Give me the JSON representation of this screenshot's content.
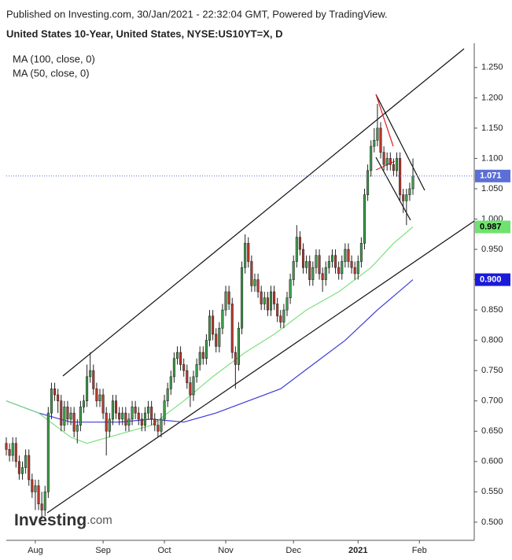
{
  "chart_data": {
    "type": "candlestick",
    "published": "Published on Investing.com, 30/Jan/2021 - 22:32:04 GMT, Powered by TradingView.",
    "title": "United States 10-Year, United States, NYSE:US10YT=X, D",
    "logo": [
      "Investing",
      ".com"
    ],
    "up_color": "#3fa34d",
    "down_color": "#c0392b",
    "open": [
      0.63,
      0.62,
      0.61,
      0.63,
      0.6,
      0.58,
      0.59,
      0.61,
      0.57,
      0.55,
      0.56,
      0.53,
      0.52,
      0.55,
      0.68,
      0.72,
      0.71,
      0.7,
      0.66,
      0.69,
      0.67,
      0.68,
      0.65,
      0.66,
      0.69,
      0.7,
      0.74,
      0.75,
      0.72,
      0.7,
      0.71,
      0.68,
      0.65,
      0.67,
      0.7,
      0.68,
      0.67,
      0.68,
      0.66,
      0.67,
      0.69,
      0.68,
      0.67,
      0.66,
      0.68,
      0.69,
      0.67,
      0.66,
      0.65,
      0.67,
      0.7,
      0.72,
      0.74,
      0.77,
      0.78,
      0.76,
      0.75,
      0.73,
      0.71,
      0.74,
      0.76,
      0.78,
      0.77,
      0.8,
      0.84,
      0.81,
      0.79,
      0.82,
      0.85,
      0.88,
      0.86,
      0.78,
      0.76,
      0.82,
      0.92,
      0.96,
      0.93,
      0.89,
      0.9,
      0.88,
      0.86,
      0.87,
      0.85,
      0.88,
      0.86,
      0.84,
      0.83,
      0.85,
      0.87,
      0.9,
      0.93,
      0.97,
      0.95,
      0.92,
      0.93,
      0.9,
      0.92,
      0.94,
      0.91,
      0.9,
      0.92,
      0.93,
      0.94,
      0.92,
      0.91,
      0.93,
      0.95,
      0.93,
      0.92,
      0.91,
      0.93,
      0.96,
      1.04,
      1.08,
      1.12,
      1.13,
      1.15,
      1.11,
      1.09,
      1.1,
      1.09,
      1.08,
      1.1,
      1.04,
      1.03,
      1.04,
      1.05
    ],
    "high": [
      0.64,
      0.63,
      0.64,
      0.64,
      0.61,
      0.6,
      0.62,
      0.62,
      0.58,
      0.57,
      0.57,
      0.55,
      0.56,
      0.69,
      0.73,
      0.73,
      0.72,
      0.71,
      0.7,
      0.7,
      0.69,
      0.69,
      0.67,
      0.7,
      0.71,
      0.76,
      0.78,
      0.76,
      0.73,
      0.72,
      0.72,
      0.69,
      0.68,
      0.71,
      0.71,
      0.69,
      0.69,
      0.69,
      0.68,
      0.7,
      0.7,
      0.69,
      0.68,
      0.69,
      0.7,
      0.7,
      0.68,
      0.67,
      0.68,
      0.71,
      0.73,
      0.75,
      0.78,
      0.79,
      0.79,
      0.77,
      0.76,
      0.74,
      0.75,
      0.77,
      0.79,
      0.79,
      0.81,
      0.85,
      0.85,
      0.82,
      0.83,
      0.86,
      0.89,
      0.89,
      0.87,
      0.79,
      0.83,
      0.93,
      0.975,
      0.97,
      0.94,
      0.91,
      0.91,
      0.89,
      0.88,
      0.88,
      0.89,
      0.89,
      0.87,
      0.85,
      0.86,
      0.88,
      0.91,
      0.94,
      0.99,
      0.98,
      0.96,
      0.94,
      0.94,
      0.93,
      0.95,
      0.95,
      0.92,
      0.93,
      0.94,
      0.95,
      0.95,
      0.93,
      0.94,
      0.96,
      0.96,
      0.94,
      0.93,
      0.94,
      0.97,
      1.05,
      1.09,
      1.13,
      1.15,
      1.19,
      1.16,
      1.12,
      1.11,
      1.11,
      1.1,
      1.11,
      1.11,
      1.05,
      1.05,
      1.06,
      1.1
    ],
    "low": [
      0.61,
      0.6,
      0.6,
      0.59,
      0.57,
      0.57,
      0.58,
      0.56,
      0.54,
      0.52,
      0.52,
      0.505,
      0.51,
      0.54,
      0.67,
      0.7,
      0.68,
      0.65,
      0.65,
      0.66,
      0.66,
      0.64,
      0.63,
      0.65,
      0.68,
      0.69,
      0.73,
      0.71,
      0.69,
      0.69,
      0.67,
      0.61,
      0.64,
      0.66,
      0.67,
      0.66,
      0.66,
      0.65,
      0.65,
      0.66,
      0.67,
      0.66,
      0.65,
      0.65,
      0.67,
      0.66,
      0.65,
      0.64,
      0.64,
      0.66,
      0.69,
      0.71,
      0.73,
      0.76,
      0.75,
      0.74,
      0.72,
      0.69,
      0.7,
      0.73,
      0.75,
      0.76,
      0.76,
      0.79,
      0.8,
      0.78,
      0.78,
      0.81,
      0.84,
      0.85,
      0.77,
      0.72,
      0.75,
      0.81,
      0.91,
      0.92,
      0.88,
      0.88,
      0.87,
      0.85,
      0.85,
      0.84,
      0.84,
      0.85,
      0.83,
      0.82,
      0.82,
      0.84,
      0.86,
      0.89,
      0.92,
      0.94,
      0.91,
      0.91,
      0.89,
      0.89,
      0.91,
      0.9,
      0.88,
      0.89,
      0.91,
      0.92,
      0.91,
      0.9,
      0.9,
      0.92,
      0.92,
      0.91,
      0.9,
      0.9,
      0.92,
      0.95,
      1.03,
      1.07,
      1.11,
      1.12,
      1.1,
      1.08,
      1.08,
      1.08,
      1.07,
      1.07,
      1.03,
      1.01,
      0.99,
      1.03,
      1.04
    ],
    "close": [
      0.62,
      0.61,
      0.63,
      0.6,
      0.58,
      0.59,
      0.61,
      0.57,
      0.55,
      0.56,
      0.53,
      0.52,
      0.55,
      0.68,
      0.72,
      0.71,
      0.7,
      0.66,
      0.69,
      0.67,
      0.68,
      0.65,
      0.66,
      0.69,
      0.7,
      0.74,
      0.75,
      0.72,
      0.7,
      0.71,
      0.68,
      0.65,
      0.67,
      0.7,
      0.68,
      0.67,
      0.68,
      0.66,
      0.67,
      0.69,
      0.68,
      0.67,
      0.66,
      0.68,
      0.69,
      0.67,
      0.66,
      0.65,
      0.67,
      0.7,
      0.72,
      0.74,
      0.77,
      0.78,
      0.76,
      0.75,
      0.73,
      0.71,
      0.74,
      0.76,
      0.78,
      0.77,
      0.8,
      0.84,
      0.81,
      0.79,
      0.82,
      0.85,
      0.88,
      0.86,
      0.78,
      0.76,
      0.82,
      0.92,
      0.96,
      0.93,
      0.89,
      0.9,
      0.88,
      0.86,
      0.87,
      0.85,
      0.88,
      0.86,
      0.84,
      0.83,
      0.85,
      0.87,
      0.9,
      0.93,
      0.97,
      0.95,
      0.92,
      0.93,
      0.9,
      0.92,
      0.94,
      0.91,
      0.9,
      0.92,
      0.93,
      0.94,
      0.92,
      0.91,
      0.93,
      0.95,
      0.93,
      0.92,
      0.91,
      0.93,
      0.96,
      1.04,
      1.08,
      1.12,
      1.13,
      1.15,
      1.11,
      1.09,
      1.1,
      1.09,
      1.08,
      1.1,
      1.04,
      1.03,
      1.04,
      1.05,
      1.071
    ],
    "series": [
      {
        "name": "MA (100, close, 0)",
        "color": "#3b3bd6",
        "x": [
          0,
          10,
          20,
          35,
          45,
          55,
          65,
          75,
          85,
          95,
          105,
          115,
          126
        ],
        "values": [
          0.7,
          0.68,
          0.665,
          0.665,
          0.67,
          0.665,
          0.68,
          0.7,
          0.72,
          0.76,
          0.8,
          0.85,
          0.9
        ]
      },
      {
        "name": "MA (50, close, 0)",
        "color": "#7ee07e",
        "x": [
          0,
          10,
          20,
          25,
          35,
          45,
          55,
          64,
          74,
          83,
          93,
          103,
          113,
          120,
          126
        ],
        "values": [
          0.7,
          0.68,
          0.64,
          0.63,
          0.645,
          0.66,
          0.7,
          0.74,
          0.78,
          0.81,
          0.85,
          0.88,
          0.92,
          0.96,
          0.987
        ]
      }
    ],
    "price_labels": [
      {
        "value": 1.071,
        "color": "#5b6fd6",
        "text_color": "#ffffff",
        "dotted": true
      },
      {
        "value": 0.987,
        "label": "0.987",
        "color": "#6ee36e",
        "text_color": "#000000"
      },
      {
        "value": 0.9,
        "label": "0.900",
        "color": "#1a1adb",
        "text_color": "#ffffff"
      }
    ],
    "xlim": [
      0,
      145
    ],
    "xticks": [
      {
        "value": 9,
        "label": "Aug"
      },
      {
        "value": 30,
        "label": "Sep"
      },
      {
        "value": 49,
        "label": "Oct"
      },
      {
        "value": 68,
        "label": "Nov"
      },
      {
        "value": 89,
        "label": "Dec"
      },
      {
        "value": 109,
        "label": "2021"
      },
      {
        "value": 128,
        "label": "Feb"
      }
    ],
    "ylim": [
      0.47,
      1.29
    ],
    "yticks": [
      {
        "value": 0.5,
        "label": "0.500"
      },
      {
        "value": 0.55,
        "label": "0.550"
      },
      {
        "value": 0.6,
        "label": "0.600"
      },
      {
        "value": 0.65,
        "label": "0.650"
      },
      {
        "value": 0.7,
        "label": "0.700"
      },
      {
        "value": 0.75,
        "label": "0.750"
      },
      {
        "value": 0.8,
        "label": "0.800"
      },
      {
        "value": 0.85,
        "label": "0.850"
      },
      {
        "value": 0.9,
        "label": "0.900"
      },
      {
        "value": 0.95,
        "label": "0.950"
      },
      {
        "value": 1.0,
        "label": "1.000"
      },
      {
        "value": 1.05,
        "label": "1.050"
      },
      {
        "value": 1.1,
        "label": "1.100"
      },
      {
        "value": 1.15,
        "label": "1.150"
      },
      {
        "value": 1.2,
        "label": "1.200"
      },
      {
        "value": 1.25,
        "label": "1.250"
      }
    ]
  }
}
